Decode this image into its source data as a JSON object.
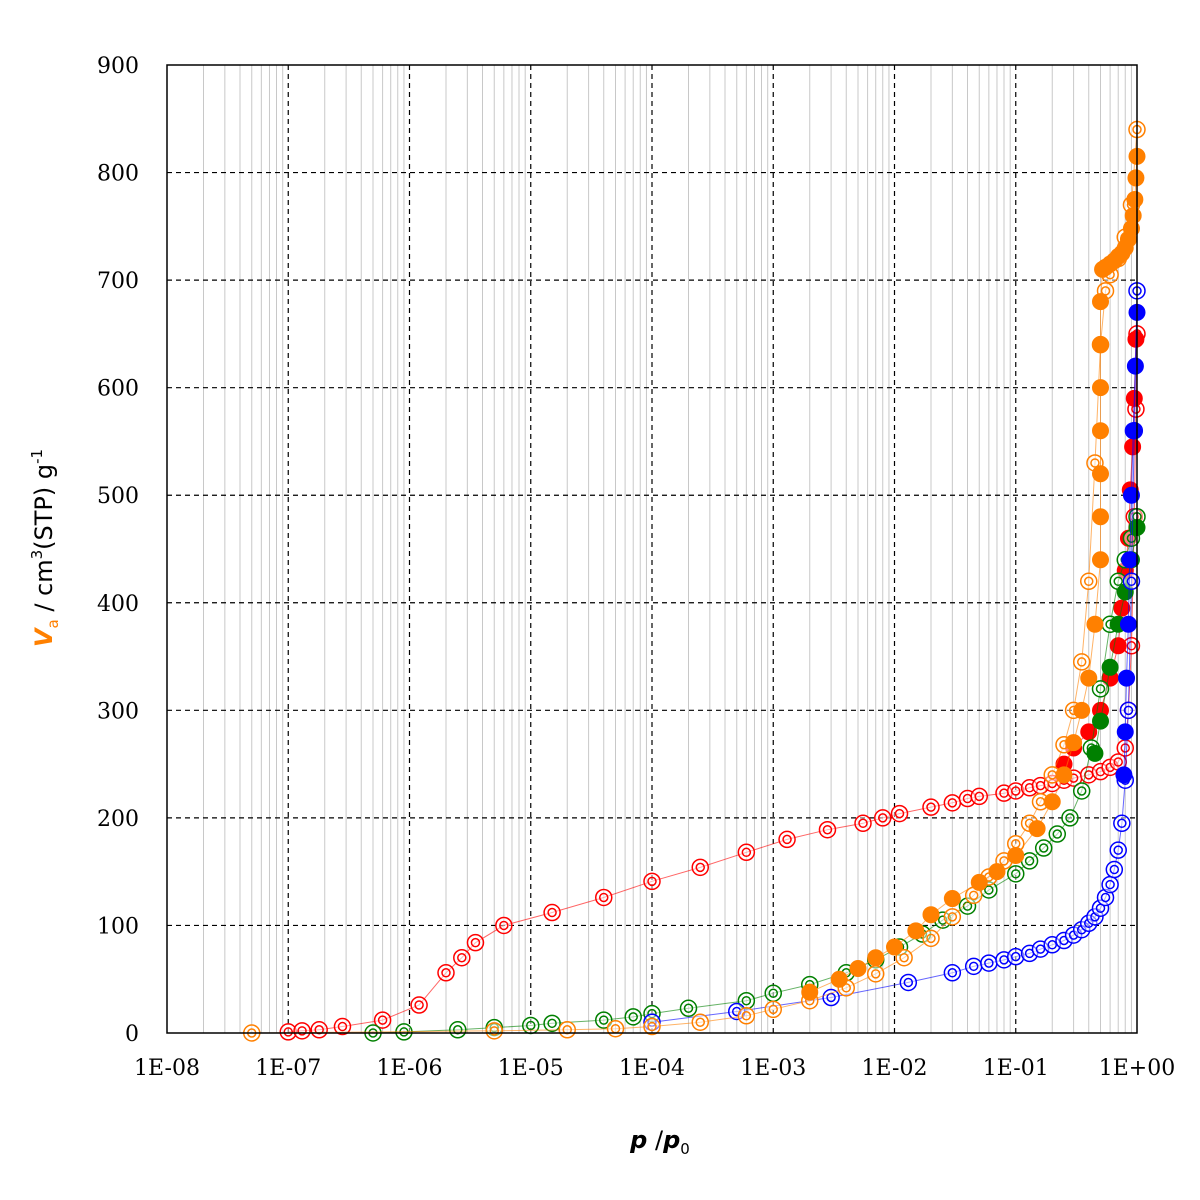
{
  "chart_data": {
    "type": "scatter",
    "title": "",
    "xscale": "log",
    "xlim": [
      1e-08,
      1
    ],
    "ylim": [
      0,
      900
    ],
    "grid": true,
    "legend": "none",
    "x_tick_labels": [
      "1E-08",
      "1E-07",
      "1E-06",
      "1E-05",
      "1E-04",
      "1E-03",
      "1E-02",
      "1E-01",
      "1E+00"
    ],
    "y_tick_labels": [
      "0",
      "100",
      "200",
      "300",
      "400",
      "500",
      "600",
      "700",
      "800",
      "900"
    ],
    "ylabel": {
      "prefix": "V",
      "subscript": "a",
      "unit": " / cm",
      "unit_sup": "3",
      "unit_rest": "(STP) g",
      "unit_sup2": "-1",
      "prefix_color": "#ff8000"
    },
    "xlabel": {
      "numerator": "p",
      "sep": " /",
      "denominator": "p",
      "denominator_sub": "0"
    },
    "series": [
      {
        "color": "#ff0000",
        "x": [
          1e-07,
          1.3e-07,
          1.8e-07,
          2.8e-07,
          6e-07,
          1.2e-06,
          2e-06,
          2.7e-06,
          3.5e-06,
          6e-06,
          1.5e-05,
          4e-05,
          0.0001,
          0.00025,
          0.0006,
          0.0013,
          0.0028,
          0.0055,
          0.008,
          0.011,
          0.02,
          0.03,
          0.04,
          0.05,
          0.08,
          0.1,
          0.13,
          0.16,
          0.2,
          0.25,
          0.3,
          0.4,
          0.5,
          0.6,
          0.7,
          0.8,
          0.85,
          0.9,
          0.95,
          0.98,
          1.0
        ],
        "adsorption": [
          1,
          2,
          3,
          6,
          12,
          26,
          56,
          70,
          84,
          100,
          112,
          126,
          141,
          154,
          168,
          180,
          189,
          195,
          200,
          204,
          210,
          214,
          218,
          220,
          223,
          225,
          228,
          230,
          232,
          235,
          237,
          240,
          243,
          247,
          252,
          265,
          300,
          360,
          480,
          580,
          650
        ],
        "desorption_x": [
          0.98,
          0.95,
          0.92,
          0.88,
          0.85,
          0.8,
          0.75,
          0.7,
          0.6,
          0.5,
          0.4,
          0.3,
          0.25
        ],
        "desorption": [
          645,
          590,
          545,
          505,
          460,
          430,
          395,
          360,
          330,
          300,
          280,
          265,
          250
        ]
      },
      {
        "color": "#008000",
        "x": [
          5e-07,
          9e-07,
          2.5e-06,
          5e-06,
          1e-05,
          1.5e-05,
          4e-05,
          7e-05,
          0.0001,
          0.0002,
          0.0006,
          0.001,
          0.002,
          0.004,
          0.007,
          0.011,
          0.017,
          0.025,
          0.04,
          0.06,
          0.1,
          0.13,
          0.17,
          0.22,
          0.28,
          0.35,
          0.42,
          0.5,
          0.6,
          0.7,
          0.8,
          0.9,
          1.0
        ],
        "adsorption": [
          0,
          1,
          3,
          5,
          7,
          9,
          12,
          15,
          18,
          23,
          30,
          37,
          45,
          56,
          68,
          80,
          92,
          105,
          118,
          133,
          148,
          160,
          172,
          185,
          200,
          225,
          265,
          320,
          380,
          420,
          440,
          460,
          480
        ],
        "desorption_x": [
          1.0,
          0.9,
          0.8,
          0.7,
          0.6,
          0.5,
          0.45
        ],
        "desorption": [
          470,
          440,
          410,
          380,
          340,
          290,
          260
        ]
      },
      {
        "color": "#0000ff",
        "x": [
          0.0001,
          0.0005,
          0.003,
          0.013,
          0.03,
          0.045,
          0.06,
          0.08,
          0.1,
          0.13,
          0.16,
          0.2,
          0.25,
          0.3,
          0.35,
          0.4,
          0.45,
          0.5,
          0.55,
          0.6,
          0.65,
          0.7,
          0.75,
          0.8,
          0.85,
          0.9,
          0.95,
          1.0
        ],
        "adsorption": [
          10,
          20,
          33,
          47,
          56,
          62,
          65,
          68,
          71,
          74,
          78,
          82,
          86,
          91,
          96,
          102,
          108,
          116,
          126,
          138,
          152,
          170,
          195,
          235,
          300,
          420,
          560,
          690
        ],
        "desorption_x": [
          1.0,
          0.97,
          0.93,
          0.9,
          0.87,
          0.85,
          0.82,
          0.8,
          0.78
        ],
        "desorption": [
          670,
          620,
          560,
          500,
          440,
          380,
          330,
          280,
          240
        ]
      },
      {
        "color": "#ff8000",
        "x": [
          5e-08,
          5e-06,
          2e-05,
          5e-05,
          0.0001,
          0.00025,
          0.0006,
          0.001,
          0.002,
          0.004,
          0.007,
          0.012,
          0.02,
          0.03,
          0.045,
          0.06,
          0.08,
          0.1,
          0.13,
          0.16,
          0.2,
          0.25,
          0.3,
          0.35,
          0.4,
          0.45,
          0.5,
          0.55,
          0.6,
          0.7,
          0.8,
          0.9,
          1.0
        ],
        "adsorption": [
          0,
          2,
          3,
          4,
          6,
          10,
          16,
          22,
          30,
          42,
          55,
          70,
          88,
          108,
          128,
          145,
          160,
          176,
          195,
          215,
          240,
          268,
          300,
          345,
          420,
          530,
          640,
          690,
          705,
          720,
          740,
          770,
          840
        ],
        "desorption_x": [
          1.0,
          0.98,
          0.96,
          0.93,
          0.9,
          0.85,
          0.8,
          0.75,
          0.7,
          0.65,
          0.6,
          0.55,
          0.52,
          0.5,
          0.5,
          0.5,
          0.5,
          0.5,
          0.5,
          0.5,
          0.45,
          0.4,
          0.35,
          0.3,
          0.25,
          0.2,
          0.15,
          0.1,
          0.07,
          0.05,
          0.03,
          0.02,
          0.015,
          0.01,
          0.007,
          0.005,
          0.0035,
          0.002
        ],
        "desorption": [
          815,
          795,
          775,
          760,
          748,
          738,
          730,
          725,
          722,
          718,
          715,
          712,
          710,
          680,
          640,
          600,
          560,
          520,
          480,
          440,
          380,
          330,
          300,
          270,
          240,
          215,
          190,
          165,
          150,
          140,
          125,
          110,
          95,
          80,
          70,
          60,
          50,
          38
        ]
      }
    ]
  }
}
